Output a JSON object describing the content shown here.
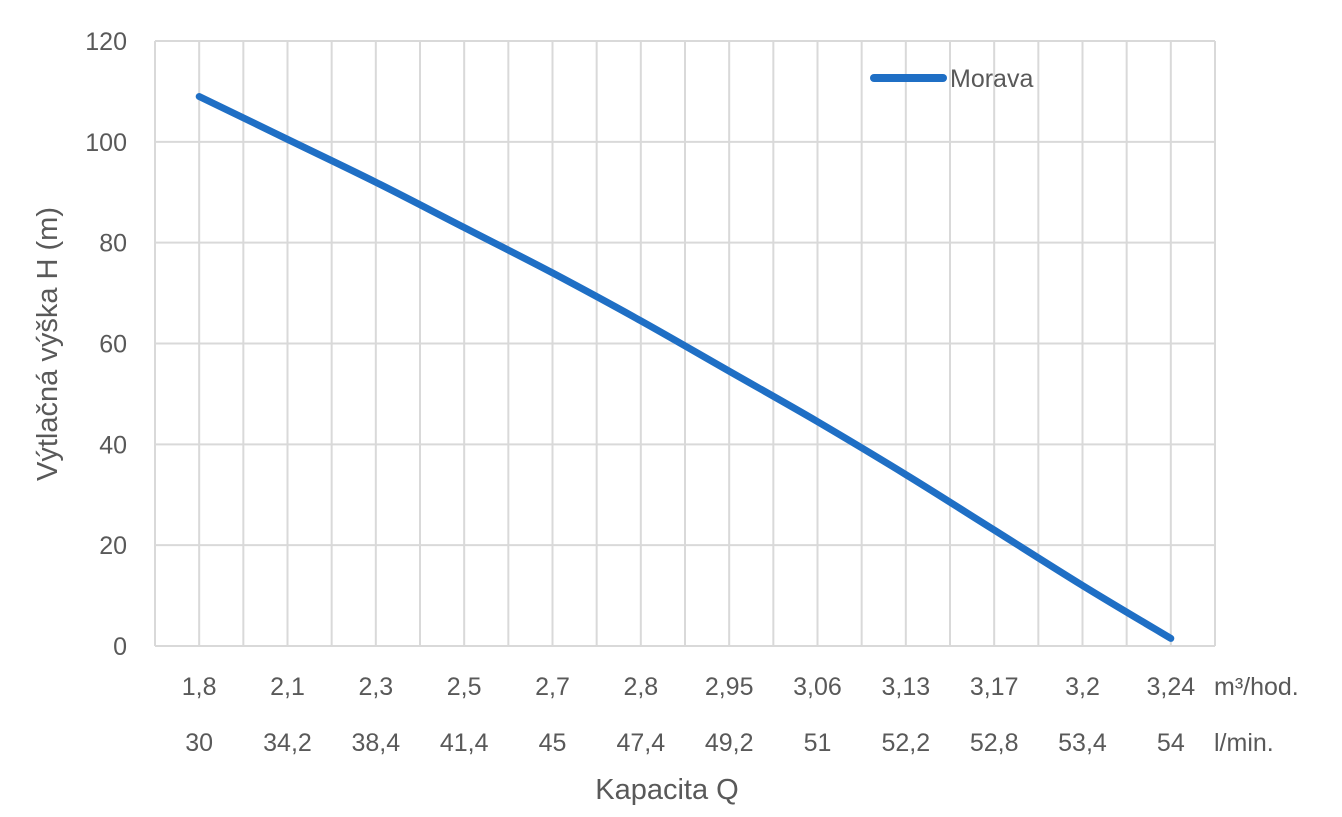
{
  "chart_data": {
    "type": "line",
    "title": "",
    "xlabel": "Kapacita Q",
    "ylabel": "Výtlačná výška H (m)",
    "ylim": [
      0,
      120
    ],
    "y_ticks": [
      "0",
      "20",
      "40",
      "60",
      "80",
      "100",
      "120"
    ],
    "grid": true,
    "legend_position": "top-right",
    "x_units": {
      "row1": "m³/hod.",
      "row2": "l/min."
    },
    "categories_row1": [
      "1,8",
      "2,1",
      "2,3",
      "2,5",
      "2,7",
      "2,8",
      "2,95",
      "3,06",
      "3,13",
      "3,17",
      "3,2",
      "3,24"
    ],
    "categories_row2": [
      "30",
      "34,2",
      "38,4",
      "41,4",
      "45",
      "47,4",
      "49,2",
      "51",
      "52,2",
      "52,8",
      "53,4",
      "54"
    ],
    "series": [
      {
        "name": "Morava",
        "color": "#1f6fc5",
        "values": [
          109,
          100.5,
          92,
          83,
          74,
          64.5,
          54.5,
          44.5,
          34,
          23,
          12,
          1.5
        ]
      }
    ]
  }
}
